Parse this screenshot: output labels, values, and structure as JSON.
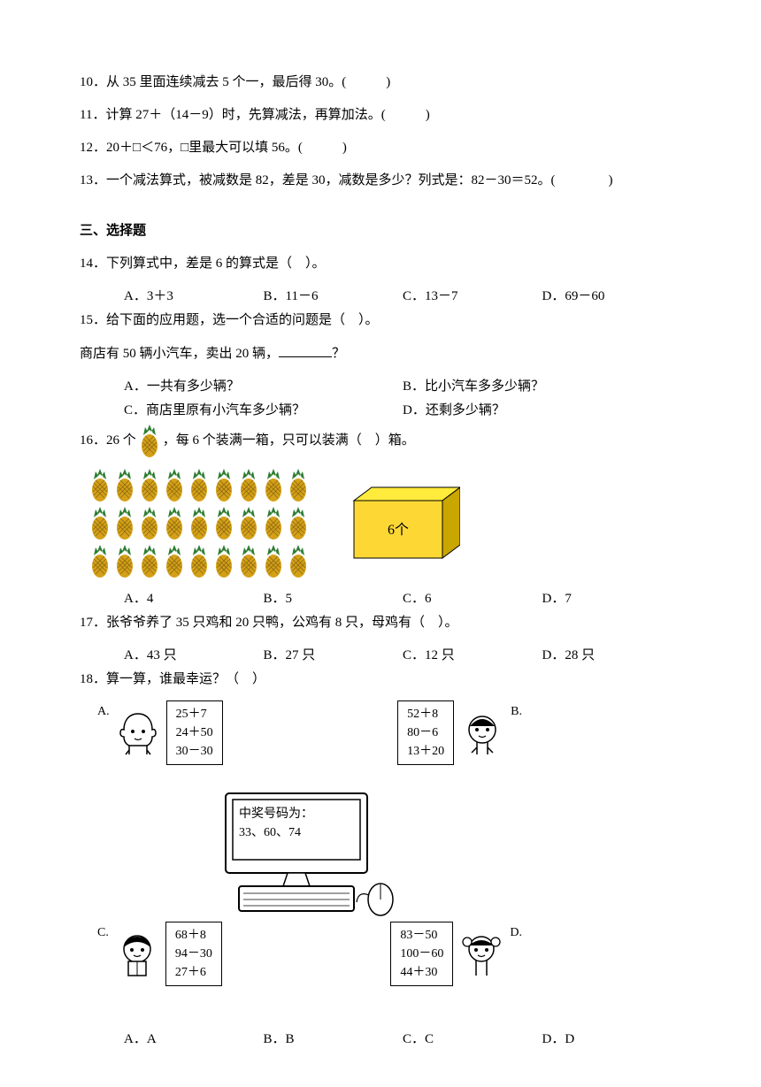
{
  "q10": {
    "num": "10．",
    "text": "从 35 里面连续减去 5 个一，最后得 30。(　　　)"
  },
  "q11": {
    "num": "11．",
    "text": "计算 27＋（14－9）时，先算减法，再算加法。(　　　)"
  },
  "q12": {
    "num": "12．",
    "text": "20＋□＜76，□里最大可以填 56。(　　　)"
  },
  "q13": {
    "num": "13．",
    "text": "一个减法算式，被减数是 82，差是 30，减数是多少？列式是：82－30＝52。(　　　　)"
  },
  "section3": "三、选择题",
  "q14": {
    "num": "14．",
    "text": "下列算式中，差是 6 的算式是（　）。",
    "optA": "A．3＋3",
    "optB": "B．11－6",
    "optC": "C．13－7",
    "optD": "D．69－60"
  },
  "q15": {
    "num": "15．",
    "text": "给下面的应用题，选一个合适的问题是（　）。",
    "stem": "商店有 50 辆小汽车，卖出 20 辆，",
    "stem_end": "？",
    "optA": "A．一共有多少辆？",
    "optB": "B．比小汽车多多少辆？",
    "optC": "C．商店里原有小汽车多少辆？",
    "optD": "D．还剩多少辆？"
  },
  "q16": {
    "num": "16．",
    "text_before": "26 个 ",
    "text_after": " ，每 6 个装满一箱，只可以装满（　）箱。",
    "box_label": "6个",
    "optA": "A．4",
    "optB": "B．5",
    "optC": "C．6",
    "optD": "D．7",
    "pineapple_rows": 3,
    "pineapple_cols": 9,
    "pineapple_body": "#d4a017",
    "pineapple_leaf": "#2e7d32",
    "box_top": "#ffeb3b",
    "box_front": "#fdd835",
    "box_side": "#c9a600"
  },
  "q17": {
    "num": "17．",
    "text": "张爷爷养了 35 只鸡和 20 只鸭，公鸡有 8 只，母鸡有（　）。",
    "optA": "A．43 只",
    "optB": "B．27 只",
    "optC": "C．12 只",
    "optD": "D．28 只"
  },
  "q18": {
    "num": "18．",
    "text": "算一算，谁最幸运？（　）",
    "groupA": {
      "label": "A.",
      "eq1": "25＋7",
      "eq2": "24＋50",
      "eq3": "30－30"
    },
    "groupB": {
      "label": "B.",
      "eq1": "52＋8",
      "eq2": "80－6",
      "eq3": "13＋20"
    },
    "groupC": {
      "label": "C.",
      "eq1": "68＋8",
      "eq2": "94－30",
      "eq3": "27＋6"
    },
    "groupD": {
      "label": "D.",
      "eq1": "83－50",
      "eq2": "100－60",
      "eq3": "44＋30"
    },
    "computer_line1": "中奖号码为：",
    "computer_line2": "33、60、74",
    "optA": "A．A",
    "optB": "B．B",
    "optC": "C．C",
    "optD": "D．D"
  }
}
